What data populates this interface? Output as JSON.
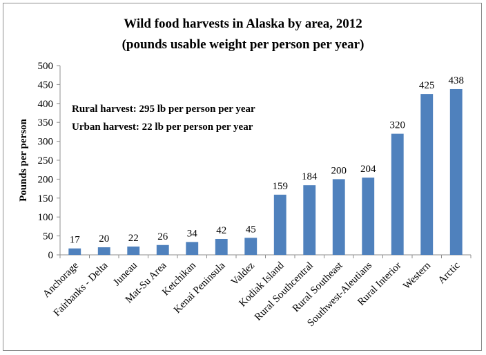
{
  "chart_data": {
    "type": "bar",
    "title": "Wild food harvests in Alaska by area, 2012",
    "subtitle": "(pounds usable weight per person per year)",
    "xlabel": "",
    "ylabel": "Pounds per person",
    "ylim": [
      0,
      500
    ],
    "yticks": [
      0,
      50,
      100,
      150,
      200,
      250,
      300,
      350,
      400,
      450,
      500
    ],
    "grid": false,
    "legend": "none",
    "categories": [
      "Anchorage",
      "Fairbanks - Delta",
      "Juneau",
      "Mat-Su Area",
      "Ketchikan",
      "Kenai Peninsula",
      "Valdez",
      "Kodiak Island",
      "Rural Southcentral",
      "Rural Southeast",
      "Southwest-Aleutians",
      "Rural Interior",
      "Western",
      "Arctic"
    ],
    "values": [
      17,
      20,
      22,
      26,
      34,
      42,
      45,
      159,
      184,
      200,
      204,
      320,
      425,
      438
    ],
    "bar_color": "#4f81bd",
    "annotations": [
      "Rural harvest:  295 lb per person per year",
      "Urban harvest:  22 lb per person per year"
    ]
  }
}
